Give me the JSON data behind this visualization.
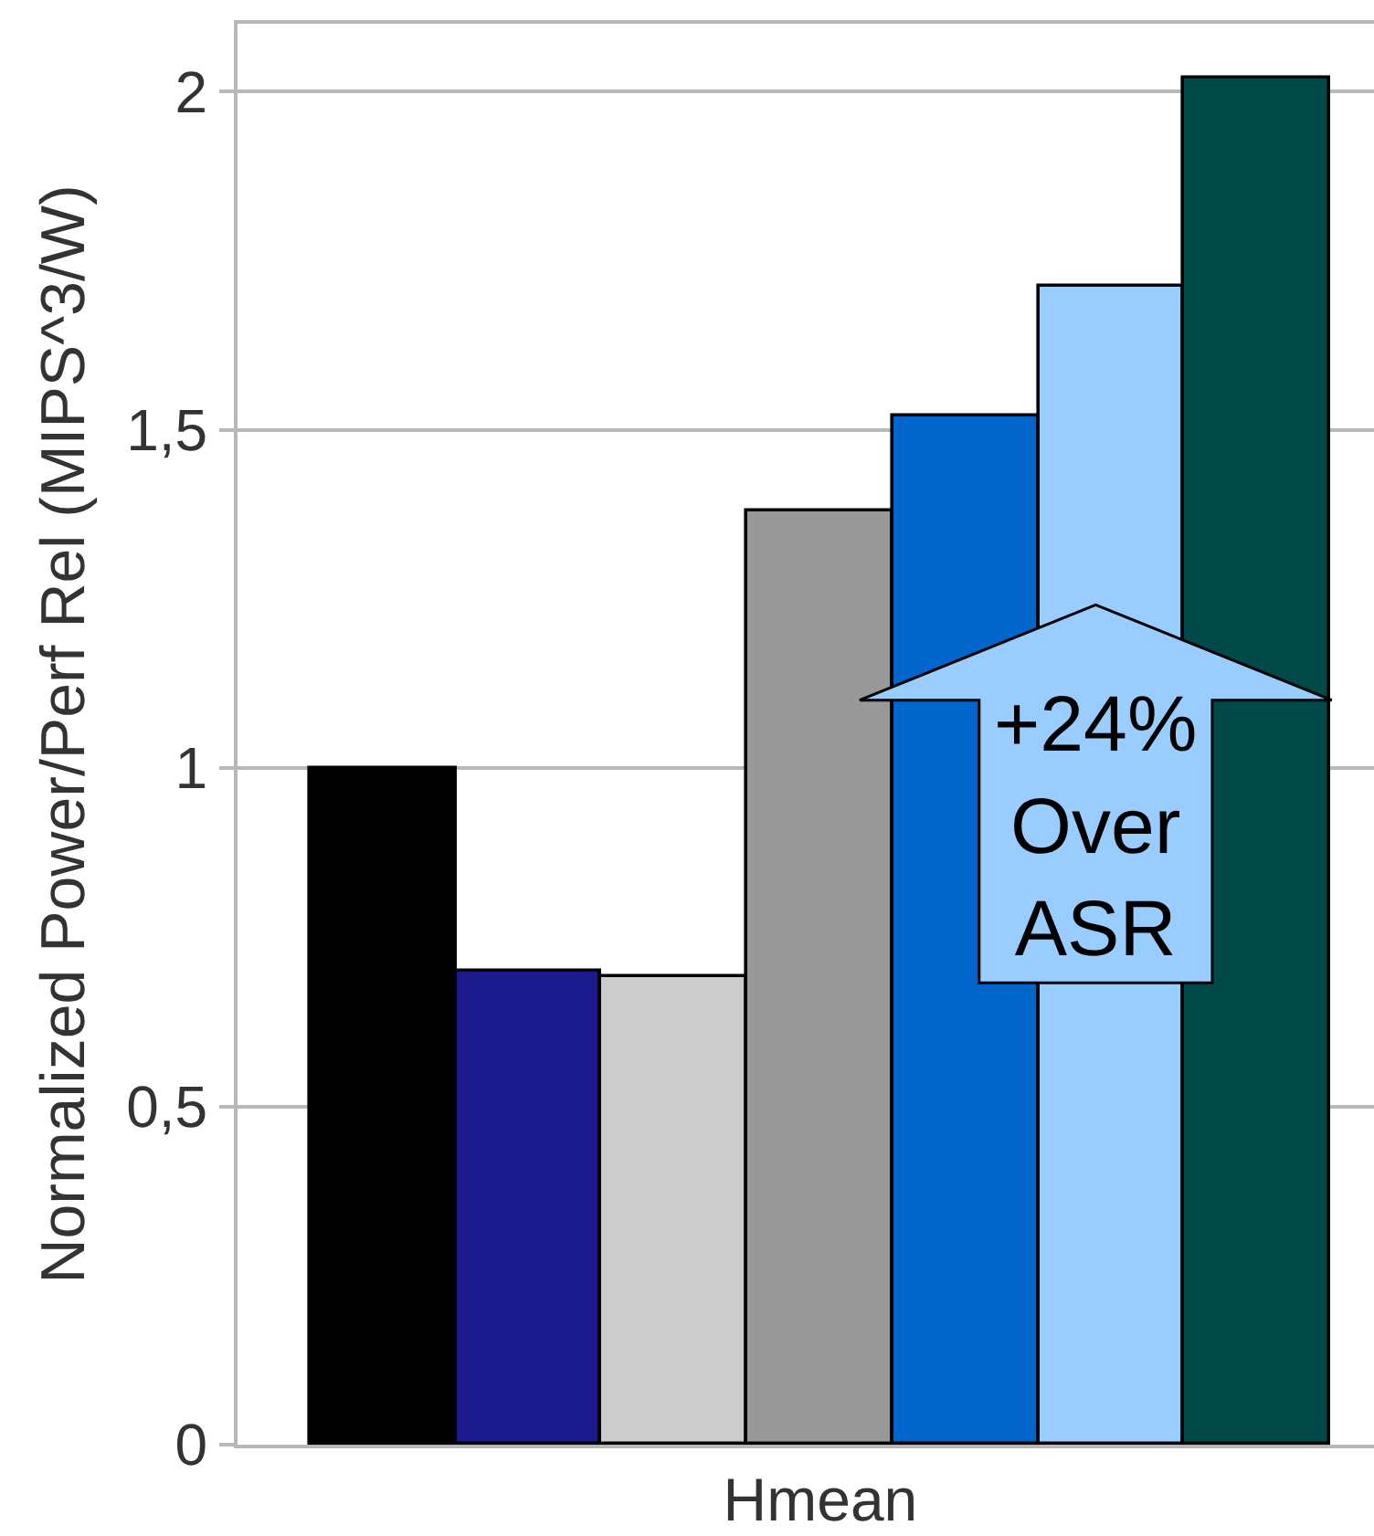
{
  "chart_data": {
    "type": "bar",
    "ylabel": "Normalized Power/Perf Rel (MIPS^3/W)",
    "categories": [
      null,
      null,
      null,
      "Hmean",
      null,
      null,
      null
    ],
    "values": [
      1.0,
      0.7,
      0.69,
      1.38,
      1.52,
      1.71,
      2.02
    ],
    "colors": [
      "#000000",
      "#1a1a8c",
      "#cccccc",
      "#999999",
      "#0066cc",
      "#99ccff",
      "#004a4a"
    ],
    "ylim": [
      0,
      2.1
    ],
    "yticks": [
      0,
      {
        "value": 0.5,
        "label": "0,5"
      },
      1,
      {
        "value": 1.5,
        "label": "1,5"
      },
      2
    ],
    "grid": "y",
    "annotations": [
      "+24%\nOver\nASR"
    ]
  }
}
